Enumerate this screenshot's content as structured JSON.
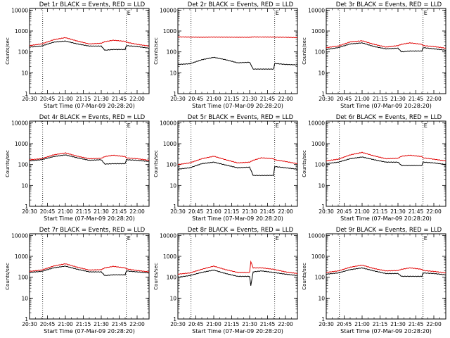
{
  "colors": {
    "events": "#000000",
    "lld": "#e00000",
    "frame": "#000000",
    "background": "#ffffff"
  },
  "xlabel": "Start Time (07-Mar-09 20:28:20)",
  "ylabel": "Counts/sec",
  "x_tick_labels": [
    "20:30",
    "20:45",
    "21:00",
    "21:15",
    "21:30",
    "21:45",
    "22:00"
  ],
  "y_tick_labels": [
    "1",
    "10",
    "100",
    "1000",
    "10000"
  ],
  "corner_mark": "E",
  "chart_data": [
    {
      "type": "line",
      "title": "Det 1r BLACK = Events, RED = LLD",
      "xlim": [
        "20:30",
        "22:10"
      ],
      "ylim": [
        1,
        12000
      ],
      "yscale": "log",
      "grid": false,
      "xlabel": "Start Time (07-Mar-09 20:28:20)",
      "ylabel": "Counts/sec",
      "vlines": [
        "20:41",
        "21:51"
      ],
      "x": [
        "20:30",
        "20:40",
        "20:50",
        "21:00",
        "21:10",
        "21:20",
        "21:30",
        "21:33",
        "21:40",
        "21:50",
        "21:51",
        "22:00",
        "22:10"
      ],
      "series": [
        {
          "name": "RED = LLD",
          "color": "#e00000",
          "values": [
            200,
            240,
            380,
            480,
            330,
            240,
            260,
            310,
            360,
            320,
            290,
            230,
            190
          ]
        },
        {
          "name": "BLACK = Events",
          "color": "#000000",
          "values": [
            170,
            190,
            290,
            330,
            240,
            190,
            190,
            120,
            130,
            130,
            200,
            180,
            150
          ]
        }
      ]
    },
    {
      "type": "line",
      "title": "Det 2r BLACK = Events, RED = LLD",
      "xlim": [
        "20:30",
        "22:10"
      ],
      "ylim": [
        1,
        12000
      ],
      "yscale": "log",
      "grid": false,
      "xlabel": "Start Time (07-Mar-09 20:28:20)",
      "ylabel": "Counts/sec",
      "vlines": [
        "20:41",
        "21:51"
      ],
      "x": [
        "20:30",
        "20:40",
        "20:50",
        "21:00",
        "21:10",
        "21:20",
        "21:30",
        "21:33",
        "21:40",
        "21:50",
        "21:51",
        "22:00",
        "22:10"
      ],
      "series": [
        {
          "name": "RED = LLD",
          "color": "#e00000",
          "values": [
            520,
            510,
            500,
            510,
            505,
            500,
            500,
            520,
            510,
            510,
            505,
            500,
            480
          ]
        },
        {
          "name": "BLACK = Events",
          "color": "#000000",
          "values": [
            25,
            27,
            42,
            55,
            42,
            30,
            32,
            15,
            15,
            15,
            28,
            25,
            24
          ]
        }
      ]
    },
    {
      "type": "line",
      "title": "Det 3r BLACK = Events, RED = LLD",
      "xlim": [
        "20:30",
        "22:10"
      ],
      "ylim": [
        1,
        12000
      ],
      "yscale": "log",
      "grid": false,
      "xlabel": "Start Time (07-Mar-09 20:28:20)",
      "ylabel": "Counts/sec",
      "vlines": [
        "20:41",
        "21:51"
      ],
      "x": [
        "20:30",
        "20:40",
        "20:50",
        "21:00",
        "21:10",
        "21:20",
        "21:30",
        "21:33",
        "21:40",
        "21:50",
        "21:51",
        "22:00",
        "22:10"
      ],
      "series": [
        {
          "name": "RED = LLD",
          "color": "#e00000",
          "values": [
            160,
            190,
            300,
            340,
            230,
            170,
            200,
            230,
            270,
            230,
            200,
            180,
            150
          ]
        },
        {
          "name": "BLACK = Events",
          "color": "#000000",
          "values": [
            130,
            160,
            240,
            270,
            180,
            140,
            150,
            100,
            110,
            110,
            160,
            140,
            120
          ]
        }
      ]
    },
    {
      "type": "line",
      "title": "Det 4r BLACK = Events, RED = LLD",
      "xlim": [
        "20:30",
        "22:10"
      ],
      "ylim": [
        1,
        12000
      ],
      "yscale": "log",
      "grid": false,
      "xlabel": "Start Time (07-Mar-09 20:28:20)",
      "ylabel": "Counts/sec",
      "vlines": [
        "20:41",
        "21:51"
      ],
      "x": [
        "20:30",
        "20:40",
        "20:50",
        "21:00",
        "21:10",
        "21:20",
        "21:30",
        "21:33",
        "21:40",
        "21:50",
        "21:51",
        "22:00",
        "22:10"
      ],
      "series": [
        {
          "name": "RED = LLD",
          "color": "#e00000",
          "values": [
            170,
            190,
            290,
            360,
            250,
            190,
            200,
            240,
            280,
            240,
            210,
            190,
            160
          ]
        },
        {
          "name": "BLACK = Events",
          "color": "#000000",
          "values": [
            150,
            170,
            240,
            290,
            210,
            160,
            170,
            105,
            110,
            110,
            170,
            160,
            140
          ]
        }
      ]
    },
    {
      "type": "line",
      "title": "Det 5r BLACK = Events, RED = LLD",
      "xlim": [
        "20:30",
        "22:10"
      ],
      "ylim": [
        1,
        12000
      ],
      "yscale": "log",
      "grid": false,
      "xlabel": "Start Time (07-Mar-09 20:28:20)",
      "ylabel": "Counts/sec",
      "vlines": [
        "20:41",
        "21:51"
      ],
      "x": [
        "20:30",
        "20:40",
        "20:50",
        "21:00",
        "21:10",
        "21:20",
        "21:30",
        "21:33",
        "21:40",
        "21:50",
        "21:51",
        "22:00",
        "22:10"
      ],
      "series": [
        {
          "name": "RED = LLD",
          "color": "#e00000",
          "values": [
            100,
            120,
            190,
            250,
            170,
            120,
            130,
            160,
            210,
            190,
            170,
            140,
            110
          ]
        },
        {
          "name": "BLACK = Events",
          "color": "#000000",
          "values": [
            60,
            70,
            110,
            130,
            95,
            70,
            75,
            30,
            30,
            30,
            80,
            70,
            60
          ]
        }
      ]
    },
    {
      "type": "line",
      "title": "Det 6r BLACK = Events, RED = LLD",
      "xlim": [
        "20:30",
        "22:10"
      ],
      "ylim": [
        1,
        12000
      ],
      "yscale": "log",
      "grid": false,
      "xlabel": "Start Time (07-Mar-09 20:28:20)",
      "ylabel": "Counts/sec",
      "vlines": [
        "20:41",
        "21:51"
      ],
      "x": [
        "20:30",
        "20:40",
        "20:50",
        "21:00",
        "21:10",
        "21:20",
        "21:30",
        "21:33",
        "21:40",
        "21:50",
        "21:51",
        "22:00",
        "22:10"
      ],
      "series": [
        {
          "name": "RED = LLD",
          "color": "#e00000",
          "values": [
            150,
            180,
            290,
            380,
            260,
            190,
            200,
            250,
            280,
            240,
            210,
            180,
            150
          ]
        },
        {
          "name": "BLACK = Events",
          "color": "#000000",
          "values": [
            110,
            130,
            190,
            230,
            170,
            130,
            130,
            90,
            90,
            90,
            130,
            120,
            100
          ]
        }
      ]
    },
    {
      "type": "line",
      "title": "Det 7r BLACK = Events, RED = LLD",
      "xlim": [
        "20:30",
        "22:10"
      ],
      "ylim": [
        1,
        12000
      ],
      "yscale": "log",
      "grid": false,
      "xlabel": "Start Time (07-Mar-09 20:28:20)",
      "ylabel": "Counts/sec",
      "vlines": [
        "20:41",
        "21:51"
      ],
      "x": [
        "20:30",
        "20:40",
        "20:50",
        "21:00",
        "21:10",
        "21:20",
        "21:30",
        "21:33",
        "21:40",
        "21:50",
        "21:51",
        "22:00",
        "22:10"
      ],
      "series": [
        {
          "name": "RED = LLD",
          "color": "#e00000",
          "values": [
            190,
            220,
            340,
            440,
            300,
            220,
            230,
            280,
            330,
            280,
            250,
            210,
            180
          ]
        },
        {
          "name": "BLACK = Events",
          "color": "#000000",
          "values": [
            170,
            190,
            280,
            340,
            240,
            180,
            180,
            120,
            130,
            130,
            200,
            180,
            160
          ]
        }
      ]
    },
    {
      "type": "line",
      "title": "Det 8r BLACK = Events, RED = LLD",
      "xlim": [
        "20:30",
        "22:10"
      ],
      "ylim": [
        1,
        12000
      ],
      "yscale": "log",
      "grid": false,
      "xlabel": "Start Time (07-Mar-09 20:28:20)",
      "ylabel": "Counts/sec",
      "vlines": [
        "20:41",
        "21:51"
      ],
      "x": [
        "20:30",
        "20:40",
        "20:50",
        "21:00",
        "21:10",
        "21:20",
        "21:30",
        "21:31",
        "21:33",
        "21:40",
        "21:50",
        "22:00",
        "22:10"
      ],
      "series": [
        {
          "name": "RED = LLD",
          "color": "#e00000",
          "values": [
            140,
            160,
            240,
            340,
            230,
            170,
            170,
            550,
            280,
            280,
            240,
            180,
            150
          ]
        },
        {
          "name": "BLACK = Events",
          "color": "#000000",
          "values": [
            100,
            120,
            170,
            220,
            150,
            110,
            110,
            40,
            180,
            200,
            170,
            140,
            120
          ]
        }
      ]
    },
    {
      "type": "line",
      "title": "Det 9r BLACK = Events, RED = LLD",
      "xlim": [
        "20:30",
        "22:10"
      ],
      "ylim": [
        1,
        12000
      ],
      "yscale": "log",
      "grid": false,
      "xlabel": "Start Time (07-Mar-09 20:28:20)",
      "ylabel": "Counts/sec",
      "vlines": [
        "20:41",
        "21:51"
      ],
      "x": [
        "20:30",
        "20:40",
        "20:50",
        "21:00",
        "21:10",
        "21:20",
        "21:30",
        "21:33",
        "21:40",
        "21:50",
        "21:51",
        "22:00",
        "22:10"
      ],
      "series": [
        {
          "name": "RED = LLD",
          "color": "#e00000",
          "values": [
            170,
            200,
            300,
            380,
            260,
            200,
            210,
            240,
            280,
            240,
            210,
            190,
            160
          ]
        },
        {
          "name": "BLACK = Events",
          "color": "#000000",
          "values": [
            140,
            160,
            230,
            280,
            200,
            150,
            150,
            110,
            110,
            110,
            160,
            150,
            130
          ]
        }
      ]
    }
  ]
}
